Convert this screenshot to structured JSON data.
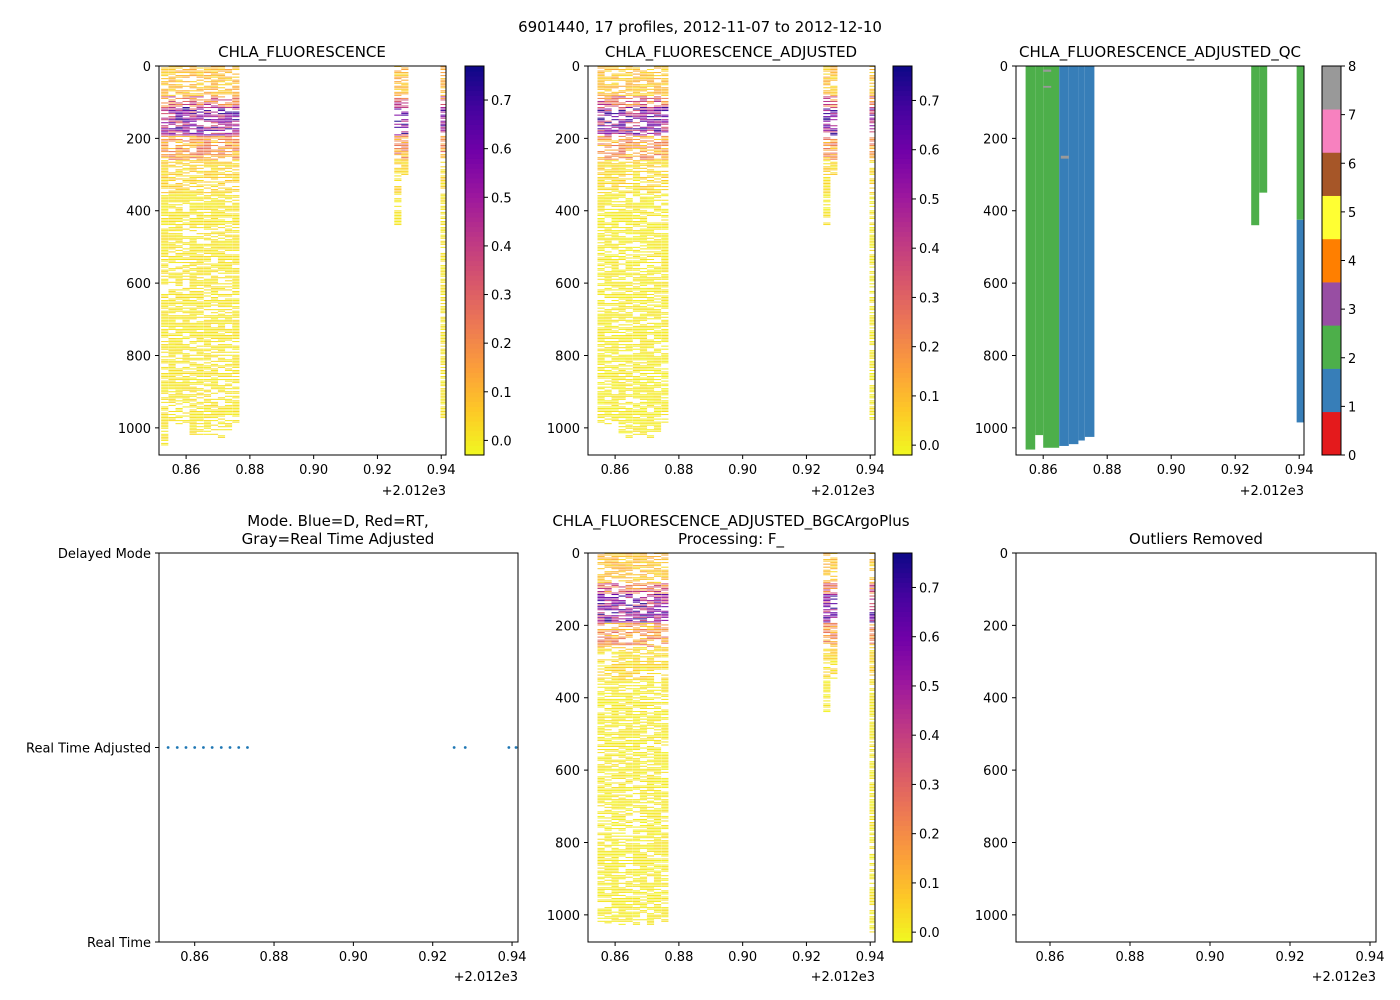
{
  "suptitle": "6901440, 17 profiles, 2012-11-07 to 2012-12-10",
  "colors": {
    "plasma": [
      "#f0f921",
      "#fdca26",
      "#fb9f3a",
      "#ed7953",
      "#d8576b",
      "#bd3786",
      "#9c179e",
      "#7201a8",
      "#46039f",
      "#0d0887"
    ],
    "qc_classes": [
      "#e41a1c",
      "#377eb8",
      "#4daf4a",
      "#984ea3",
      "#ff7f00",
      "#ffff33",
      "#a65628",
      "#f781bf",
      "#999999"
    ],
    "mode_marker": "#1f77b4"
  },
  "chart_data": [
    {
      "type": "heatmap",
      "name": "raw",
      "title": "CHLA_FLUORESCENCE",
      "x_offset_label": "+2.012e3",
      "xlim": [
        0.8515,
        0.9415
      ],
      "ylim": [
        1075,
        0
      ],
      "xticks": [
        "0.86",
        "0.88",
        "0.90",
        "0.92",
        "0.94"
      ],
      "yticks": [
        "0",
        "200",
        "400",
        "600",
        "800",
        "1000"
      ],
      "colorbar": {
        "range": [
          -0.03,
          0.77
        ],
        "ticks": [
          "0.0",
          "0.1",
          "0.2",
          "0.3",
          "0.4",
          "0.5",
          "0.6",
          "0.7"
        ]
      },
      "profiles": [
        {
          "x": 0.8533,
          "max_depth": 1050
        },
        {
          "x": 0.8556,
          "max_depth": 985
        },
        {
          "x": 0.8578,
          "max_depth": 990
        },
        {
          "x": 0.86,
          "max_depth": 985
        },
        {
          "x": 0.8622,
          "max_depth": 1020
        },
        {
          "x": 0.8644,
          "max_depth": 1025
        },
        {
          "x": 0.8667,
          "max_depth": 1020
        },
        {
          "x": 0.8689,
          "max_depth": 1020
        },
        {
          "x": 0.8711,
          "max_depth": 1025
        },
        {
          "x": 0.8733,
          "max_depth": 1010
        },
        {
          "x": 0.8756,
          "max_depth": 985
        },
        {
          "x": 0.9264,
          "max_depth": 440
        },
        {
          "x": 0.9286,
          "max_depth": 300
        },
        {
          "x": 0.9409,
          "max_depth": 975
        }
      ]
    },
    {
      "type": "heatmap",
      "name": "adjusted",
      "title": "CHLA_FLUORESCENCE_ADJUSTED",
      "x_offset_label": "+2.012e3",
      "xlim": [
        0.8515,
        0.9415
      ],
      "ylim": [
        1075,
        0
      ],
      "xticks": [
        "0.86",
        "0.88",
        "0.90",
        "0.92",
        "0.94"
      ],
      "yticks": [
        "0",
        "200",
        "400",
        "600",
        "800",
        "1000"
      ],
      "colorbar": {
        "range": [
          -0.02,
          0.77
        ],
        "ticks": [
          "0.0",
          "0.1",
          "0.2",
          "0.3",
          "0.4",
          "0.5",
          "0.6",
          "0.7"
        ]
      },
      "profiles": [
        {
          "x": 0.8556,
          "max_depth": 985
        },
        {
          "x": 0.8578,
          "max_depth": 990
        },
        {
          "x": 0.86,
          "max_depth": 985
        },
        {
          "x": 0.8622,
          "max_depth": 1020
        },
        {
          "x": 0.8644,
          "max_depth": 1025
        },
        {
          "x": 0.8667,
          "max_depth": 1020
        },
        {
          "x": 0.8689,
          "max_depth": 1020
        },
        {
          "x": 0.8711,
          "max_depth": 1025
        },
        {
          "x": 0.8733,
          "max_depth": 1010
        },
        {
          "x": 0.8756,
          "max_depth": 985
        },
        {
          "x": 0.9264,
          "max_depth": 440
        },
        {
          "x": 0.9286,
          "max_depth": 300
        },
        {
          "x": 0.9409,
          "max_depth": 975
        }
      ]
    },
    {
      "type": "heatmap",
      "name": "qc",
      "title": "CHLA_FLUORESCENCE_ADJUSTED_QC",
      "x_offset_label": "+2.012e3",
      "xlim": [
        0.8515,
        0.9415
      ],
      "ylim": [
        1075,
        0
      ],
      "xticks": [
        "0.86",
        "0.88",
        "0.90",
        "0.92",
        "0.94"
      ],
      "yticks": [
        "0",
        "200",
        "400",
        "600",
        "800",
        "1000"
      ],
      "colorbar": {
        "range": [
          0,
          8
        ],
        "ticks": [
          "0",
          "1",
          "2",
          "3",
          "4",
          "5",
          "6",
          "7",
          "8"
        ]
      },
      "bars": [
        {
          "x0": 0.8545,
          "x1": 0.8575,
          "top": 0,
          "bottom": 1060,
          "qc": 2
        },
        {
          "x0": 0.8575,
          "x1": 0.86,
          "top": 0,
          "bottom": 1020,
          "qc": 2
        },
        {
          "x0": 0.86,
          "x1": 0.865,
          "top": 0,
          "bottom": 1055,
          "qc": 2
        },
        {
          "x0": 0.865,
          "x1": 0.868,
          "top": 0,
          "bottom": 1050,
          "qc": 1
        },
        {
          "x0": 0.868,
          "x1": 0.871,
          "top": 0,
          "bottom": 1045,
          "qc": 1
        },
        {
          "x0": 0.871,
          "x1": 0.873,
          "top": 0,
          "bottom": 1035,
          "qc": 1
        },
        {
          "x0": 0.873,
          "x1": 0.876,
          "top": 0,
          "bottom": 1025,
          "qc": 1
        },
        {
          "x0": 0.86,
          "x1": 0.8625,
          "top": 10,
          "bottom": 16,
          "qc": 8
        },
        {
          "x0": 0.86,
          "x1": 0.8625,
          "top": 55,
          "bottom": 60,
          "qc": 8
        },
        {
          "x0": 0.8655,
          "x1": 0.868,
          "top": 248,
          "bottom": 256,
          "qc": 8
        },
        {
          "x0": 0.925,
          "x1": 0.9275,
          "top": 0,
          "bottom": 440,
          "qc": 2
        },
        {
          "x0": 0.9275,
          "x1": 0.93,
          "top": 0,
          "bottom": 350,
          "qc": 2
        },
        {
          "x0": 0.9392,
          "x1": 0.9415,
          "top": 0,
          "bottom": 425,
          "qc": 2
        },
        {
          "x0": 0.9392,
          "x1": 0.9415,
          "top": 425,
          "bottom": 985,
          "qc": 1
        }
      ]
    },
    {
      "type": "scatter",
      "name": "mode",
      "title": "Mode. Blue=D, Red=RT,",
      "title_line2": "Gray=Real Time Adjusted",
      "x_offset_label": "+2.012e3",
      "xlim": [
        0.851,
        0.9415
      ],
      "xticks": [
        "0.86",
        "0.88",
        "0.90",
        "0.92",
        "0.94"
      ],
      "ycategories": [
        "Real Time",
        "Real Time Adjusted",
        "Delayed Mode"
      ],
      "x": [
        0.8533,
        0.8556,
        0.8578,
        0.86,
        0.8622,
        0.8644,
        0.8667,
        0.8689,
        0.8711,
        0.8733,
        0.9254,
        0.9282,
        0.9392,
        0.941
      ],
      "y": [
        1,
        1,
        1,
        1,
        1,
        1,
        1,
        1,
        1,
        1,
        1,
        1,
        1,
        1
      ]
    },
    {
      "type": "heatmap",
      "name": "bgc",
      "title": "CHLA_FLUORESCENCE_ADJUSTED_BGCArgoPlus",
      "title_line2": "Processing: F_",
      "x_offset_label": "+2.012e3",
      "xlim": [
        0.8515,
        0.9415
      ],
      "ylim": [
        1075,
        0
      ],
      "xticks": [
        "0.86",
        "0.88",
        "0.90",
        "0.92",
        "0.94"
      ],
      "yticks": [
        "0",
        "200",
        "400",
        "600",
        "800",
        "1000"
      ],
      "colorbar": {
        "range": [
          -0.02,
          0.77
        ],
        "ticks": [
          "0.0",
          "0.1",
          "0.2",
          "0.3",
          "0.4",
          "0.5",
          "0.6",
          "0.7"
        ]
      },
      "profiles": [
        {
          "x": 0.8556,
          "max_depth": 1020
        },
        {
          "x": 0.8578,
          "max_depth": 1025
        },
        {
          "x": 0.86,
          "max_depth": 1020
        },
        {
          "x": 0.8622,
          "max_depth": 1025
        },
        {
          "x": 0.8644,
          "max_depth": 1020
        },
        {
          "x": 0.8667,
          "max_depth": 1025
        },
        {
          "x": 0.8689,
          "max_depth": 1020
        },
        {
          "x": 0.8711,
          "max_depth": 1025
        },
        {
          "x": 0.8733,
          "max_depth": 1010
        },
        {
          "x": 0.8756,
          "max_depth": 1020
        },
        {
          "x": 0.9264,
          "max_depth": 440
        },
        {
          "x": 0.9286,
          "max_depth": 350
        },
        {
          "x": 0.9409,
          "max_depth": 1050
        }
      ]
    },
    {
      "type": "scatter",
      "name": "outliers",
      "title": "Outliers Removed",
      "x_offset_label": "+2.012e3",
      "xlim": [
        0.8515,
        0.9415
      ],
      "ylim": [
        1075,
        0
      ],
      "xticks": [
        "0.86",
        "0.88",
        "0.90",
        "0.92",
        "0.94"
      ],
      "yticks": [
        "0",
        "200",
        "400",
        "600",
        "800",
        "1000"
      ],
      "x": [],
      "y": []
    }
  ]
}
